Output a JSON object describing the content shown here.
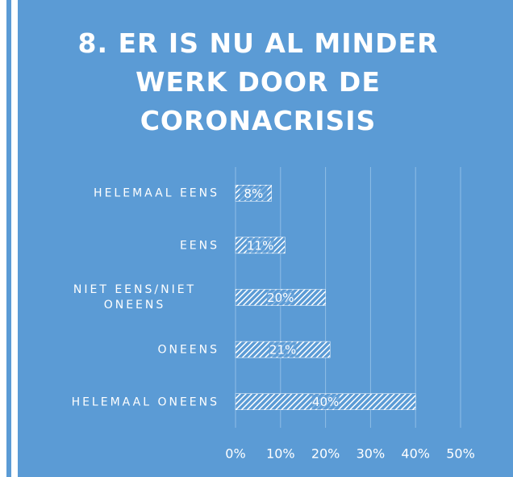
{
  "chart_data": {
    "type": "barh",
    "title": "8. ER IS NU AL MINDER WERK DOOR DE CORONACRISIS",
    "categories": [
      "HELEMAAL EENS",
      "EENS",
      "NIET EENS/NIET ONEENS",
      "ONEENS",
      "HELEMAAL ONEENS"
    ],
    "values": [
      8,
      11,
      20,
      21,
      40
    ],
    "value_labels": [
      "8%",
      "11%",
      "20%",
      "21%",
      "40%"
    ],
    "color": "#ffffff",
    "xlim": [
      0,
      50
    ],
    "xticks": [
      {
        "value": 0,
        "label": "0%"
      },
      {
        "value": 10,
        "label": "10%"
      },
      {
        "value": 20,
        "label": "20%"
      },
      {
        "value": 30,
        "label": "30%"
      },
      {
        "value": 40,
        "label": "40%"
      },
      {
        "value": 50,
        "label": "50%"
      }
    ],
    "grid": true
  }
}
